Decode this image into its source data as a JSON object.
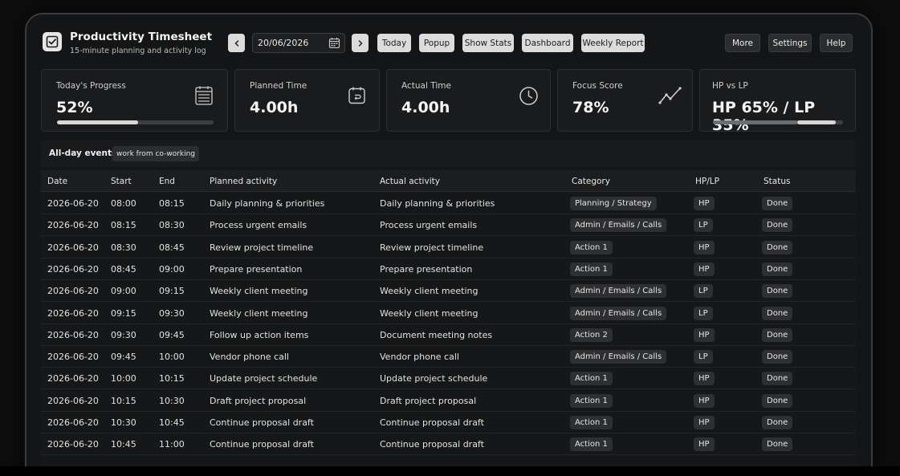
{
  "header": {
    "title": "Productivity Timesheet",
    "subtitle": "15-minute planning and activity log",
    "date_value": "20/06/2026",
    "buttons": {
      "today": "Today",
      "popup": "Popup",
      "show_stats": "Show Stats",
      "dashboard": "Dashboard",
      "weekly_report": "Weekly Report",
      "more": "More",
      "settings": "Settings",
      "help": "Help"
    }
  },
  "stats": {
    "progress": {
      "label": "Today's Progress",
      "value": "52%",
      "fraction": 0.52
    },
    "planned": {
      "label": "Planned Time",
      "value": "4.00h"
    },
    "actual": {
      "label": "Actual Time",
      "value": "4.00h"
    },
    "focus": {
      "label": "Focus Score",
      "value": "78%"
    },
    "hplp": {
      "label": "HP vs LP",
      "value": "HP 65% / LP 35%",
      "hp_fraction": 0.65,
      "lp_fraction": 0.35
    }
  },
  "allday": {
    "label": "All-day events",
    "events": [
      "work from co-working"
    ]
  },
  "table": {
    "headers": [
      "Date",
      "Start",
      "End",
      "Planned activity",
      "Actual activity",
      "Category",
      "HP/LP",
      "Status"
    ],
    "rows": [
      {
        "date": "2026-06-20",
        "start": "08:00",
        "end": "08:15",
        "planned": "Daily planning & priorities",
        "actual": "Daily planning & priorities",
        "category": "Planning / Strategy",
        "hplp": "HP",
        "status": "Done"
      },
      {
        "date": "2026-06-20",
        "start": "08:15",
        "end": "08:30",
        "planned": "Process urgent emails",
        "actual": "Process urgent emails",
        "category": "Admin / Emails / Calls",
        "hplp": "LP",
        "status": "Done"
      },
      {
        "date": "2026-06-20",
        "start": "08:30",
        "end": "08:45",
        "planned": "Review project timeline",
        "actual": "Review project timeline",
        "category": "Action 1",
        "hplp": "HP",
        "status": "Done"
      },
      {
        "date": "2026-06-20",
        "start": "08:45",
        "end": "09:00",
        "planned": "Prepare presentation",
        "actual": "Prepare presentation",
        "category": "Action 1",
        "hplp": "HP",
        "status": "Done"
      },
      {
        "date": "2026-06-20",
        "start": "09:00",
        "end": "09:15",
        "planned": "Weekly client meeting",
        "actual": "Weekly client meeting",
        "category": "Admin / Emails / Calls",
        "hplp": "LP",
        "status": "Done"
      },
      {
        "date": "2026-06-20",
        "start": "09:15",
        "end": "09:30",
        "planned": "Weekly client meeting",
        "actual": "Weekly client meeting",
        "category": "Admin / Emails / Calls",
        "hplp": "LP",
        "status": "Done"
      },
      {
        "date": "2026-06-20",
        "start": "09:30",
        "end": "09:45",
        "planned": "Follow up action items",
        "actual": "Document meeting notes",
        "category": "Action 2",
        "hplp": "HP",
        "status": "Done"
      },
      {
        "date": "2026-06-20",
        "start": "09:45",
        "end": "10:00",
        "planned": "Vendor phone call",
        "actual": "Vendor phone call",
        "category": "Admin / Emails / Calls",
        "hplp": "LP",
        "status": "Done"
      },
      {
        "date": "2026-06-20",
        "start": "10:00",
        "end": "10:15",
        "planned": "Update project schedule",
        "actual": "Update project schedule",
        "category": "Action 1",
        "hplp": "HP",
        "status": "Done"
      },
      {
        "date": "2026-06-20",
        "start": "10:15",
        "end": "10:30",
        "planned": "Draft project proposal",
        "actual": "Draft project proposal",
        "category": "Action 1",
        "hplp": "HP",
        "status": "Done"
      },
      {
        "date": "2026-06-20",
        "start": "10:30",
        "end": "10:45",
        "planned": "Continue proposal draft",
        "actual": "Continue proposal draft",
        "category": "Action 1",
        "hplp": "HP",
        "status": "Done"
      },
      {
        "date": "2026-06-20",
        "start": "10:45",
        "end": "11:00",
        "planned": "Continue proposal draft",
        "actual": "Continue proposal draft",
        "category": "Action 1",
        "hplp": "HP",
        "status": "Done"
      }
    ]
  }
}
